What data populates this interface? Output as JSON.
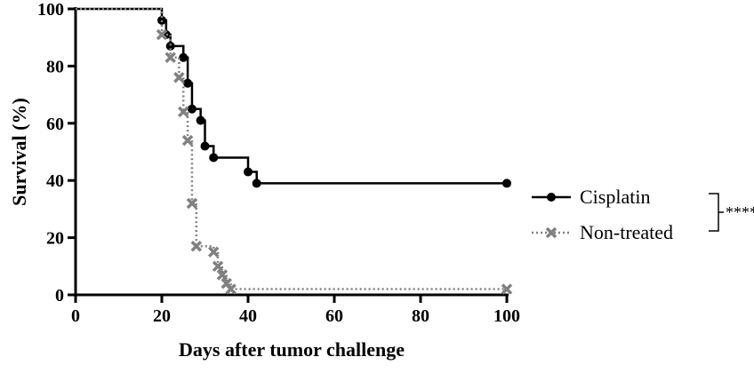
{
  "chart_data": {
    "type": "step",
    "x_label": "Days after tumor challenge",
    "y_label": "Survival (%)",
    "xlim": [
      0,
      100
    ],
    "ylim": [
      0,
      100
    ],
    "xticks": [
      0,
      20,
      40,
      60,
      80,
      100
    ],
    "yticks": [
      0,
      20,
      40,
      60,
      80,
      100
    ],
    "series": [
      {
        "name": "Cisplatin",
        "color": "#000000",
        "marker": "circle",
        "dash": "solid",
        "x": [
          0,
          20,
          21,
          22,
          25,
          26,
          27,
          29,
          30,
          32,
          40,
          42,
          100
        ],
        "values": [
          100,
          96,
          91,
          87,
          83,
          74,
          65,
          61,
          52,
          48,
          43,
          39,
          39
        ]
      },
      {
        "name": "Non-treated",
        "color": "#808080",
        "marker": "cross",
        "dash": "dotted",
        "x": [
          0,
          20,
          22,
          24,
          25,
          26,
          27,
          28,
          32,
          33,
          34,
          35,
          36,
          100
        ],
        "values": [
          100,
          91,
          83,
          76,
          64,
          54,
          32,
          17,
          15,
          10,
          7,
          4,
          2,
          2
        ]
      }
    ],
    "annotation": "****"
  }
}
